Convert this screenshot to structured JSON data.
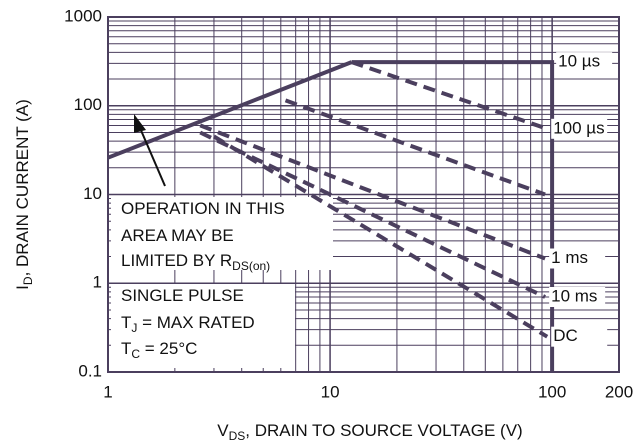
{
  "chart_data": {
    "type": "line",
    "log_x": true,
    "log_y": true,
    "grid": true,
    "color": "#4b3f5e",
    "x_label": [
      "V",
      "DS",
      ", DRAIN TO SOURCE VOLTAGE (V)"
    ],
    "y_label": [
      "I",
      "D",
      ", DRAIN CURRENT (A)"
    ],
    "xlim": [
      1,
      200
    ],
    "ylim": [
      0.1,
      1000
    ],
    "xticks": [
      1,
      10,
      100,
      200
    ],
    "yticks": [
      0.1,
      1,
      10,
      100,
      1000
    ],
    "xminor": [
      2,
      3,
      4,
      5,
      6,
      7,
      8,
      9,
      20,
      30,
      40,
      50,
      60,
      70,
      80,
      90
    ],
    "yminor": [
      0.2,
      0.3,
      0.4,
      0.5,
      0.6,
      0.7,
      0.8,
      0.9,
      2,
      3,
      4,
      5,
      6,
      7,
      8,
      9,
      20,
      30,
      40,
      50,
      60,
      70,
      80,
      90,
      200,
      300,
      400,
      500,
      600,
      700,
      800,
      900
    ],
    "series": [
      {
        "style": "solid",
        "x": [
          1,
          12.5
        ],
        "values": [
          26,
          310
        ]
      },
      {
        "name": "10 µs",
        "style": "solid",
        "x": [
          12.5,
          100,
          100
        ],
        "values": [
          310,
          310,
          0.1
        ]
      },
      {
        "name": "100 µs",
        "style": "dashed",
        "x": [
          12.5,
          95
        ],
        "values": [
          310,
          55
        ]
      },
      {
        "style": "dashed",
        "x": [
          6.3,
          93
        ],
        "values": [
          115,
          10
        ]
      },
      {
        "name": "1 ms",
        "style": "dashed",
        "x": [
          2.6,
          93
        ],
        "values": [
          60,
          1.9
        ]
      },
      {
        "name": "10 ms",
        "style": "dashed",
        "x": [
          2.6,
          93
        ],
        "values": [
          50,
          0.7
        ]
      },
      {
        "name": "DC",
        "style": "dashed",
        "x": [
          3,
          95
        ],
        "values": [
          45,
          0.25
        ]
      }
    ],
    "annotations": [
      [
        "OPERATION IN THIS"
      ],
      [
        "AREA MAY BE"
      ],
      [
        "LIMITED BY R",
        "DS(on)"
      ],
      [
        "SINGLE PULSE"
      ],
      [
        "T",
        "J",
        " = MAX RATED"
      ],
      [
        "T",
        "C",
        " = 25°C"
      ]
    ]
  }
}
